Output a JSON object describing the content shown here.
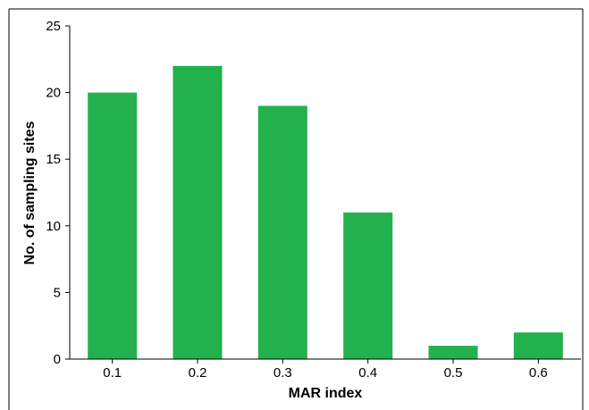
{
  "chart_data": {
    "type": "bar",
    "categories": [
      "0.1",
      "0.2",
      "0.3",
      "0.4",
      "0.5",
      "0.6"
    ],
    "values": [
      20,
      22,
      19,
      11,
      1,
      2
    ],
    "title": "",
    "xlabel": "MAR index",
    "ylabel": "No. of sampling sites",
    "ylim": [
      0,
      25
    ],
    "yticks": [
      0,
      5,
      10,
      15,
      20,
      25
    ],
    "grid": false,
    "bar_color": "#22b14c"
  }
}
